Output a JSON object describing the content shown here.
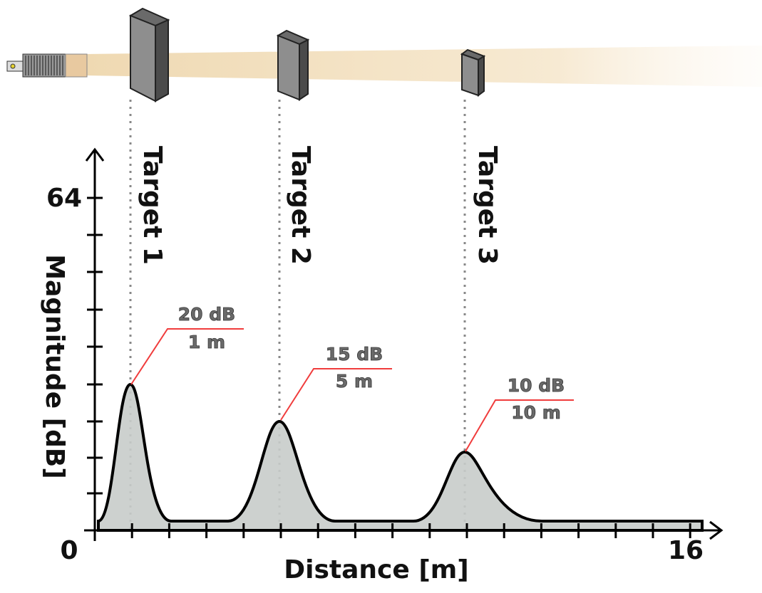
{
  "targets": [
    {
      "label": "Target 1",
      "magnitude": "20 dB",
      "distance": "1 m"
    },
    {
      "label": "Target 2",
      "magnitude": "15 dB",
      "distance": "5 m"
    },
    {
      "label": "Target 3",
      "magnitude": "10 dB",
      "distance": "10 m"
    }
  ],
  "axes": {
    "y_label": "Magnitude [dB]",
    "x_label": "Distance [m]",
    "origin_label": "0",
    "y_max_label": "64",
    "x_max_label": "16"
  }
}
